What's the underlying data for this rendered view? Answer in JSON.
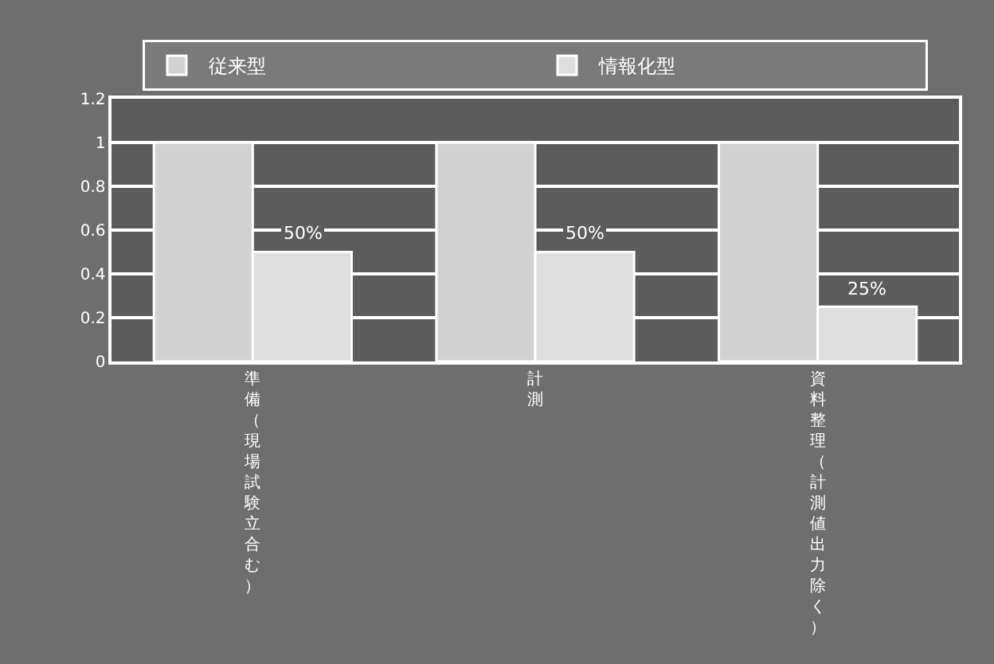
{
  "chart_data": {
    "type": "bar",
    "categories": [
      "準備（現場試験立合む）",
      "計測",
      "資料整理（計測値出力除く）"
    ],
    "series": [
      {
        "name": "従来型",
        "color": "#d2d2d2",
        "values": [
          1,
          1,
          1
        ]
      },
      {
        "name": "情報化型",
        "color": "#dedede",
        "values": [
          0.5,
          0.5,
          0.25
        ],
        "value_labels": [
          "50%",
          "50%",
          "25%"
        ]
      }
    ],
    "ylim": [
      0,
      1.2
    ],
    "yticks": [
      0,
      0.2,
      0.4,
      0.6,
      0.8,
      1,
      1.2
    ],
    "grid": "y",
    "legend": "top"
  }
}
